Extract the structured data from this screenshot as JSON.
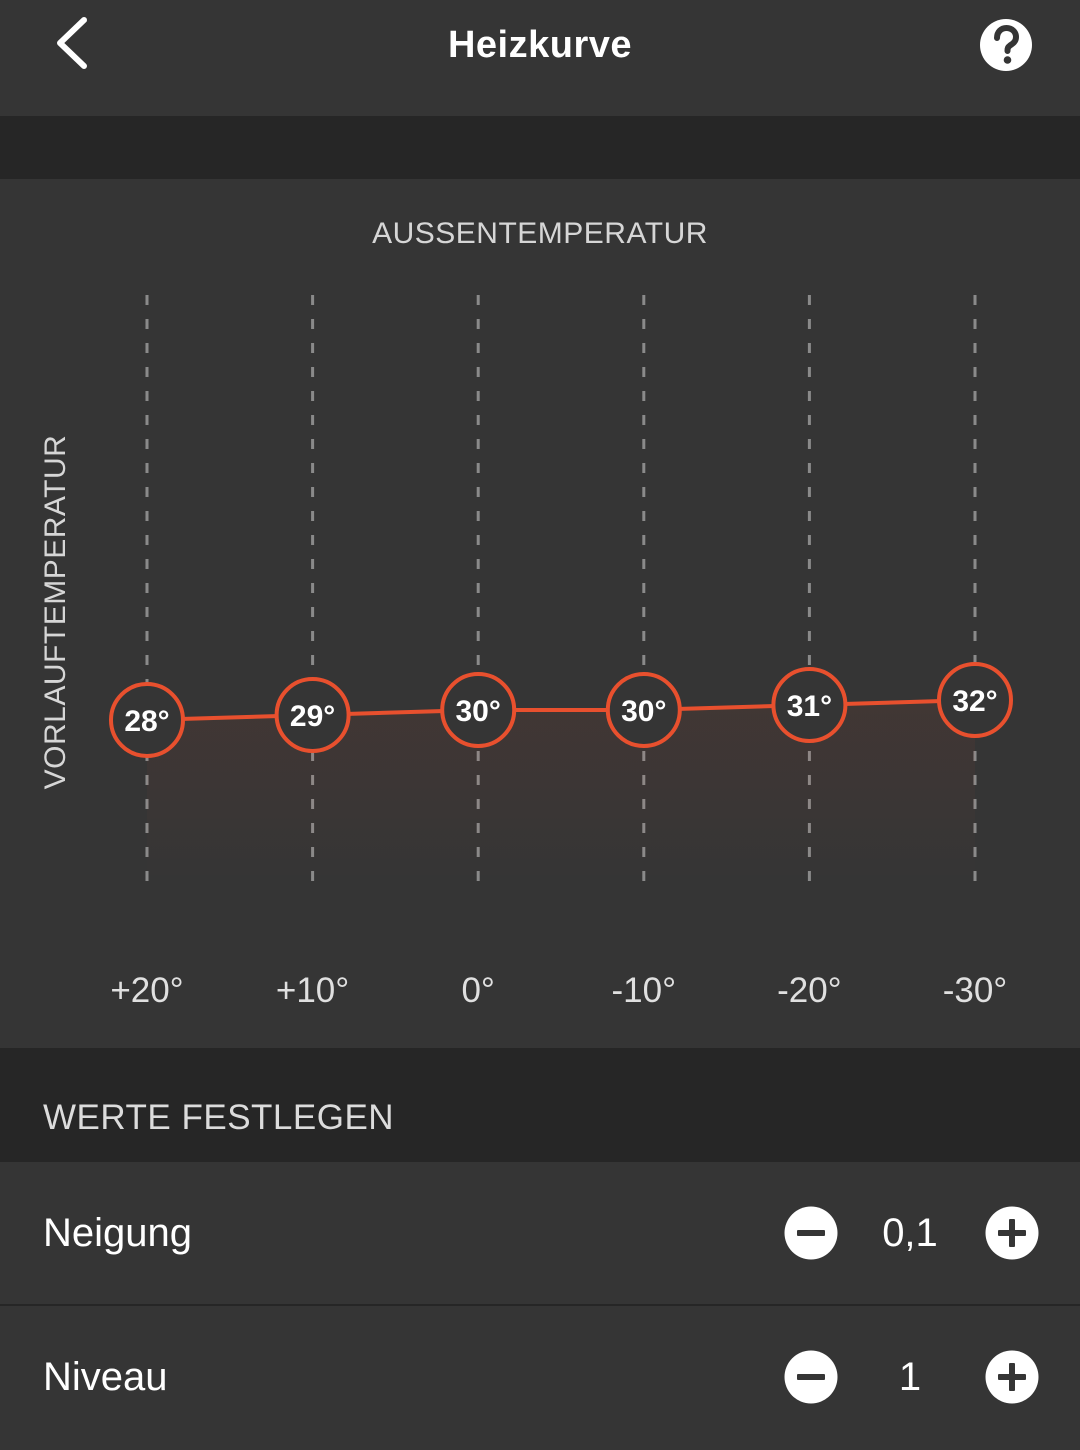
{
  "header": {
    "title": "Heizkurve"
  },
  "chart": {
    "title": "AUSSENTEMPERATUR",
    "y_label": "VORLAUFTEMPERATUR"
  },
  "chart_data": {
    "type": "line",
    "title": "AUSSENTEMPERATUR",
    "xlabel": "AUSSENTEMPERATUR",
    "ylabel": "VORLAUFTEMPERATUR",
    "categories": [
      "+20°",
      "+10°",
      "0°",
      "-10°",
      "-20°",
      "-30°"
    ],
    "x": [
      20,
      10,
      0,
      -10,
      -20,
      -30
    ],
    "series": [
      {
        "values": [
          28,
          29,
          30,
          30,
          31,
          32
        ],
        "labels": [
          "28°",
          "29°",
          "30°",
          "30°",
          "31°",
          "32°"
        ]
      }
    ],
    "line_color": "#e8502e",
    "grid": "vertical dashed"
  },
  "settings": {
    "section_title": "WERTE FESTLEGEN",
    "rows": [
      {
        "label": "Neigung",
        "value": "0,1"
      },
      {
        "label": "Niveau",
        "value": "1"
      }
    ]
  },
  "colors": {
    "accent": "#e8502e",
    "background": "#353535",
    "band": "#262626"
  },
  "icons": {
    "back": "chevron-left-icon",
    "help": "question-circle-icon",
    "minus": "minus-circle-icon",
    "plus": "plus-circle-icon"
  }
}
